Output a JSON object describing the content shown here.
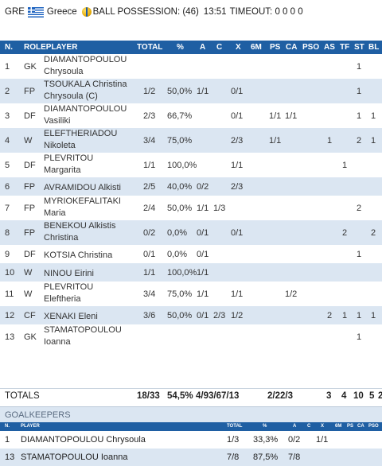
{
  "top": {
    "team_code": "GRE",
    "team_name": "Greece",
    "possession": "BALL POSSESSION: (46)",
    "clock": "13:51",
    "timeout": "TIMEOUT: 0 0 0 0"
  },
  "columns": [
    "N.",
    "ROLEPLAYER",
    "TOTAL",
    "%",
    "A",
    "C",
    "X",
    "6M",
    "PS",
    "CA",
    "PSO",
    "AS",
    "TF",
    "ST",
    "BL"
  ],
  "players": [
    {
      "n": "1",
      "role": "GK",
      "name1": "DIAMANTOPOULOU",
      "name2": "Chrysoula",
      "total": "",
      "pct": "",
      "a": "",
      "c": "",
      "x": "",
      "m6": "",
      "ps": "",
      "ca": "",
      "pso": "",
      "as": "",
      "tf": "",
      "st": "1",
      "bl": ""
    },
    {
      "n": "2",
      "role": "FP",
      "name1": "TSOUKALA Christina",
      "name2": "Chrysoula (C)",
      "total": "1/2",
      "pct": "50,0%",
      "a": "1/1",
      "c": "",
      "x": "0/1",
      "m6": "",
      "ps": "",
      "ca": "",
      "pso": "",
      "as": "",
      "tf": "",
      "st": "1",
      "bl": ""
    },
    {
      "n": "3",
      "role": "DF",
      "name1": "DIAMANTOPOULOU",
      "name2": "Vasiliki",
      "total": "2/3",
      "pct": "66,7%",
      "a": "",
      "c": "",
      "x": "0/1",
      "m6": "",
      "ps": "1/1",
      "ca": "1/1",
      "pso": "",
      "as": "",
      "tf": "",
      "st": "1",
      "bl": "1"
    },
    {
      "n": "4",
      "role": "W",
      "name1": "ELEFTHERIADOU",
      "name2": "Nikoleta",
      "total": "3/4",
      "pct": "75,0%",
      "a": "",
      "c": "",
      "x": "2/3",
      "m6": "",
      "ps": "1/1",
      "ca": "",
      "pso": "",
      "as": "1",
      "tf": "",
      "st": "2",
      "bl": "1"
    },
    {
      "n": "5",
      "role": "DF",
      "name1": "PLEVRITOU",
      "name2": "Margarita",
      "total": "1/1",
      "pct": "100,0%",
      "a": "",
      "c": "",
      "x": "1/1",
      "m6": "",
      "ps": "",
      "ca": "",
      "pso": "",
      "as": "",
      "tf": "1",
      "st": "",
      "bl": ""
    },
    {
      "n": "6",
      "role": "FP",
      "name1": "AVRAMIDOU Alkisti",
      "name2": "",
      "total": "2/5",
      "pct": "40,0%",
      "a": "0/2",
      "c": "",
      "x": "2/3",
      "m6": "",
      "ps": "",
      "ca": "",
      "pso": "",
      "as": "",
      "tf": "",
      "st": "",
      "bl": ""
    },
    {
      "n": "7",
      "role": "FP",
      "name1": "MYRIOKEFALITAKI",
      "name2": "Maria",
      "total": "2/4",
      "pct": "50,0%",
      "a": "1/1",
      "c": "1/3",
      "x": "",
      "m6": "",
      "ps": "",
      "ca": "",
      "pso": "",
      "as": "",
      "tf": "",
      "st": "2",
      "bl": ""
    },
    {
      "n": "8",
      "role": "FP",
      "name1": "BENEKOU Alkistis",
      "name2": "Christina",
      "total": "0/2",
      "pct": "0,0%",
      "a": "0/1",
      "c": "",
      "x": "0/1",
      "m6": "",
      "ps": "",
      "ca": "",
      "pso": "",
      "as": "",
      "tf": "2",
      "st": "",
      "bl": "2"
    },
    {
      "n": "9",
      "role": "DF",
      "name1": "KOTSIA Christina",
      "name2": "",
      "total": "0/1",
      "pct": "0,0%",
      "a": "0/1",
      "c": "",
      "x": "",
      "m6": "",
      "ps": "",
      "ca": "",
      "pso": "",
      "as": "",
      "tf": "",
      "st": "1",
      "bl": ""
    },
    {
      "n": "10",
      "role": "W",
      "name1": "NINOU Eirini",
      "name2": "",
      "total": "1/1",
      "pct": "100,0%",
      "a": "1/1",
      "c": "",
      "x": "",
      "m6": "",
      "ps": "",
      "ca": "",
      "pso": "",
      "as": "",
      "tf": "",
      "st": "",
      "bl": ""
    },
    {
      "n": "11",
      "role": "W",
      "name1": "PLEVRITOU",
      "name2": "Eleftheria",
      "total": "3/4",
      "pct": "75,0%",
      "a": "1/1",
      "c": "",
      "x": "1/1",
      "m6": "",
      "ps": "",
      "ca": "1/2",
      "pso": "",
      "as": "",
      "tf": "",
      "st": "",
      "bl": ""
    },
    {
      "n": "12",
      "role": "CF",
      "name1": "XENAKI Eleni",
      "name2": "",
      "total": "3/6",
      "pct": "50,0%",
      "a": "0/1",
      "c": "2/3",
      "x": "1/2",
      "m6": "",
      "ps": "",
      "ca": "",
      "pso": "",
      "as": "2",
      "tf": "1",
      "st": "1",
      "bl": "1"
    },
    {
      "n": "13",
      "role": "GK",
      "name1": "STAMATOPOULOU",
      "name2": "Ioanna",
      "total": "",
      "pct": "",
      "a": "",
      "c": "",
      "x": "",
      "m6": "",
      "ps": "",
      "ca": "",
      "pso": "",
      "as": "",
      "tf": "",
      "st": "1",
      "bl": ""
    }
  ],
  "totals": {
    "label": "TOTALS",
    "total": "18/33",
    "pct": "54,5%",
    "acx": "4/93/67/13",
    "psca": "2/22/3",
    "as": "3",
    "tf": "4",
    "st": "10",
    "bl": "5",
    "extra": "2"
  },
  "goalkeepers": {
    "title": "GOALKEEPERS",
    "columns": [
      "N.",
      "PLAYER",
      "TOTAL",
      "%",
      "A",
      "C",
      "X",
      "6M",
      "PS",
      "CA",
      "PSO"
    ],
    "rows": [
      {
        "n": "1",
        "name": "DIAMANTOPOULOU Chrysoula",
        "total": "1/3",
        "pct": "33,3%",
        "a": "0/2",
        "c": "",
        "x": "1/1"
      },
      {
        "n": "13",
        "name": "STAMATOPOULOU Ioanna",
        "total": "7/8",
        "pct": "87,5%",
        "a": "7/8",
        "c": "",
        "x": ""
      }
    ]
  },
  "colors": {
    "header_bg": "#1f5fa3",
    "row_alt": "#dbe6f2",
    "flag_blue": "#1e63c0"
  }
}
